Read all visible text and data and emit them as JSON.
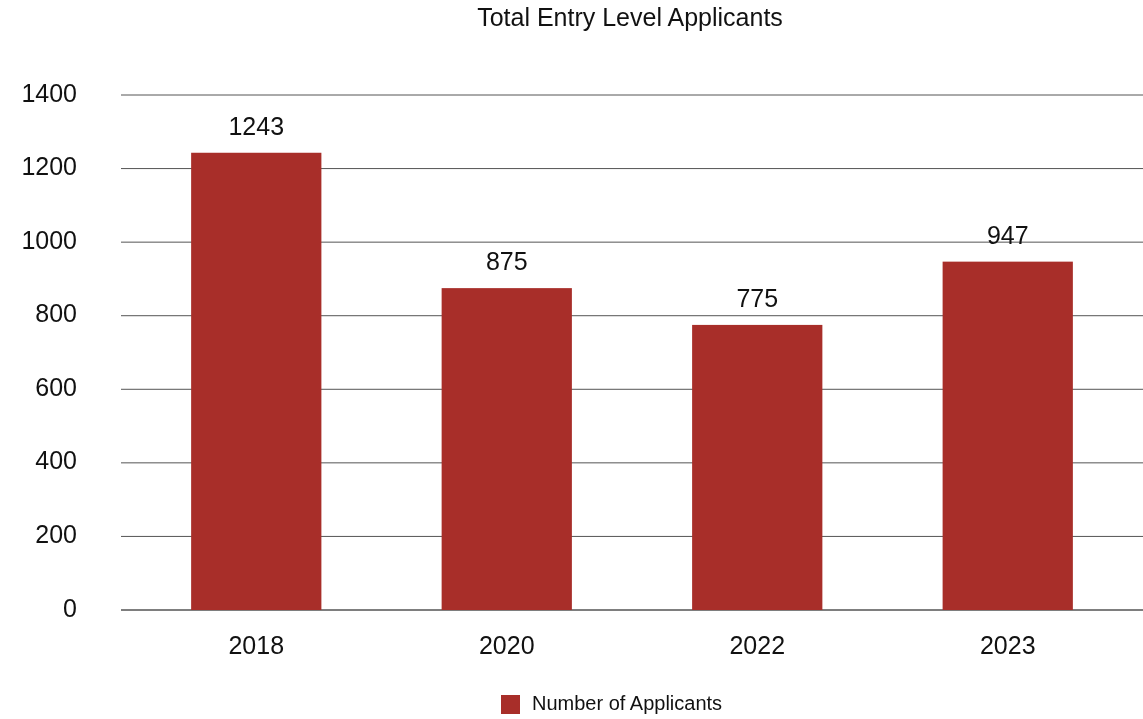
{
  "chart_data": {
    "type": "bar",
    "title": "Total Entry Level Applicants",
    "categories": [
      "2018",
      "2020",
      "2022",
      "2023"
    ],
    "series": [
      {
        "name": "Number of Applicants",
        "color": "#a82e29",
        "values": [
          1243,
          875,
          775,
          947
        ]
      }
    ],
    "ylim": [
      0,
      1400
    ],
    "yticks": [
      0,
      200,
      400,
      600,
      800,
      1000,
      1200,
      1400
    ],
    "grid": "y",
    "legend": "bottom",
    "data_labels": true
  }
}
